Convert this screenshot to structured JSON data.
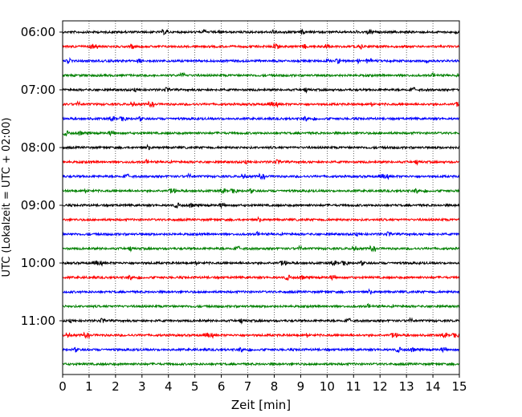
{
  "chart_data": {
    "type": "line",
    "title": "",
    "xlabel": "Zeit  [min]",
    "ylabel": "UTC (Lokalzeit = UTC + 02:00)",
    "xlim": [
      0,
      15
    ],
    "x_ticks": [
      "0",
      "1",
      "2",
      "3",
      "4",
      "5",
      "6",
      "7",
      "8",
      "9",
      "10",
      "11",
      "12",
      "13",
      "14",
      "15"
    ],
    "y_tick_labels": [
      "06:00",
      "07:00",
      "08:00",
      "09:00",
      "10:00",
      "11:00"
    ],
    "grid": "vertical dotted lines at each minute",
    "trace_colors": [
      "#000000",
      "#ff0000",
      "#0000ff",
      "#008000"
    ],
    "traces": [
      {
        "start": "06:00",
        "color": "#000000"
      },
      {
        "start": "06:15",
        "color": "#ff0000"
      },
      {
        "start": "06:30",
        "color": "#0000ff"
      },
      {
        "start": "06:45",
        "color": "#008000"
      },
      {
        "start": "07:00",
        "color": "#000000"
      },
      {
        "start": "07:15",
        "color": "#ff0000"
      },
      {
        "start": "07:30",
        "color": "#0000ff"
      },
      {
        "start": "07:45",
        "color": "#008000"
      },
      {
        "start": "08:00",
        "color": "#000000"
      },
      {
        "start": "08:15",
        "color": "#ff0000"
      },
      {
        "start": "08:30",
        "color": "#0000ff"
      },
      {
        "start": "08:45",
        "color": "#008000"
      },
      {
        "start": "09:00",
        "color": "#000000"
      },
      {
        "start": "09:15",
        "color": "#ff0000"
      },
      {
        "start": "09:30",
        "color": "#0000ff"
      },
      {
        "start": "09:45",
        "color": "#008000"
      },
      {
        "start": "10:00",
        "color": "#000000"
      },
      {
        "start": "10:15",
        "color": "#ff0000"
      },
      {
        "start": "10:30",
        "color": "#0000ff"
      },
      {
        "start": "10:45",
        "color": "#008000"
      },
      {
        "start": "11:00",
        "color": "#000000"
      },
      {
        "start": "11:15",
        "color": "#ff0000"
      },
      {
        "start": "11:30",
        "color": "#0000ff"
      },
      {
        "start": "11:45",
        "color": "#008000"
      }
    ]
  }
}
